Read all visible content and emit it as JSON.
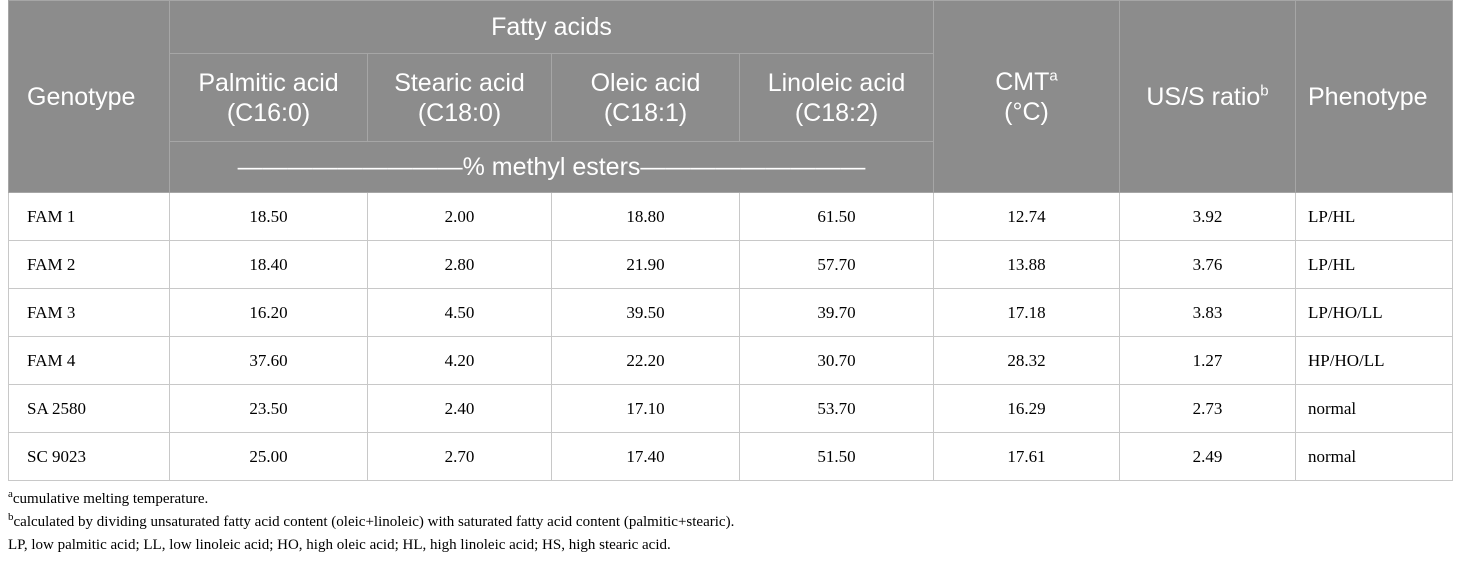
{
  "table": {
    "headers": {
      "genotype": "Genotype",
      "group": "Fatty acids",
      "palmitic_line1": "Palmitic acid",
      "palmitic_line2": "(C16:0)",
      "stearic_line1": "Stearic acid",
      "stearic_line2": "(C18:0)",
      "oleic_line1": "Oleic acid",
      "oleic_line2": "(C18:1)",
      "linoleic_line1": "Linoleic acid",
      "linoleic_line2": "(C18:2)",
      "cmt": "CMT",
      "cmt_sup": "a",
      "cmt_unit": "(°C)",
      "ratio": "US/S ratio",
      "ratio_sup": "b",
      "phenotype": "Phenotype",
      "units": "—————————% methyl esters—————————"
    },
    "rows": [
      [
        "FAM 1",
        "18.50",
        "2.00",
        "18.80",
        "61.50",
        "12.74",
        "3.92",
        "LP/HL"
      ],
      [
        "FAM 2",
        "18.40",
        "2.80",
        "21.90",
        "57.70",
        "13.88",
        "3.76",
        "LP/HL"
      ],
      [
        "FAM 3",
        "16.20",
        "4.50",
        "39.50",
        "39.70",
        "17.18",
        "3.83",
        "LP/HO/LL"
      ],
      [
        "FAM 4",
        "37.60",
        "4.20",
        "22.20",
        "30.70",
        "28.32",
        "1.27",
        "HP/HO/LL"
      ],
      [
        "SA 2580",
        "23.50",
        "2.40",
        "17.10",
        "53.70",
        "16.29",
        "2.73",
        "normal"
      ],
      [
        "SC 9023",
        "25.00",
        "2.70",
        "17.40",
        "51.50",
        "17.61",
        "2.49",
        "normal"
      ]
    ]
  },
  "footnotes": {
    "a_mark": "a",
    "a_text": "cumulative melting temperature.",
    "b_mark": "b",
    "b_text": "calculated by dividing unsaturated fatty acid content (oleic+linoleic) with saturated fatty acid content (palmitic+stearic).",
    "abbreviations": "LP, low palmitic acid; LL, low linoleic acid; HO, high oleic acid; HL, high linoleic acid; HS, high stearic acid."
  }
}
